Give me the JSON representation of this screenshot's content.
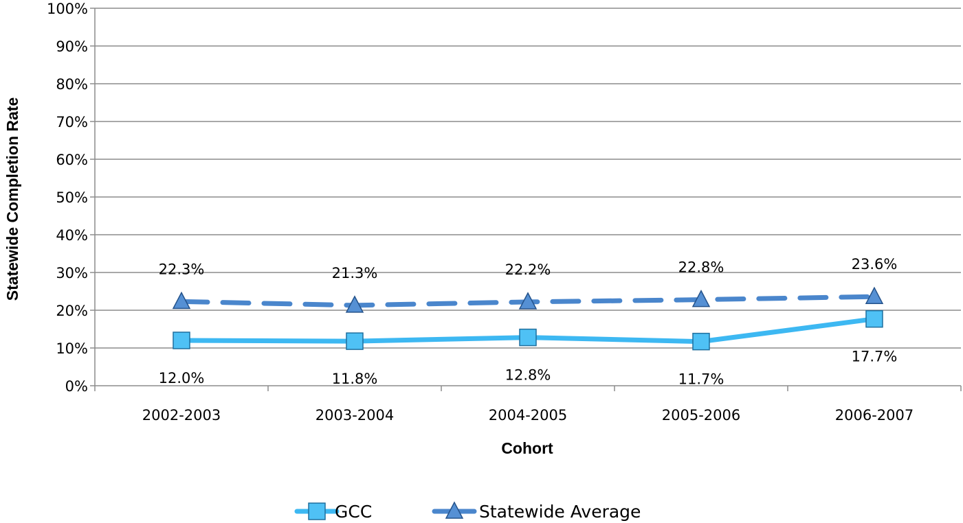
{
  "chart_data": {
    "type": "line",
    "categories": [
      "2002-2003",
      "2003-2004",
      "2004-2005",
      "2005-2006",
      "2006-2007"
    ],
    "series": [
      {
        "name": "GCC",
        "values": [
          12.0,
          11.8,
          12.8,
          11.7,
          17.7
        ],
        "labels": [
          "12.0%",
          "11.8%",
          "12.8%",
          "11.7%",
          "17.7%"
        ],
        "color": "#3db8f2",
        "marker": "square",
        "line_style": "solid"
      },
      {
        "name": "Statewide Average",
        "values": [
          22.3,
          21.3,
          22.2,
          22.8,
          23.6
        ],
        "labels": [
          "22.3%",
          "21.3%",
          "22.2%",
          "22.8%",
          "23.6%"
        ],
        "color": "#4a86cc",
        "marker": "triangle",
        "line_style": "dashed"
      }
    ],
    "xlabel": "Cohort",
    "ylabel": "Statewide Completion Rate",
    "ylim": [
      0,
      100
    ],
    "y_ticks": [
      "0%",
      "10%",
      "20%",
      "30%",
      "40%",
      "50%",
      "60%",
      "70%",
      "80%",
      "90%",
      "100%"
    ],
    "grid": true,
    "legend_position": "bottom"
  }
}
